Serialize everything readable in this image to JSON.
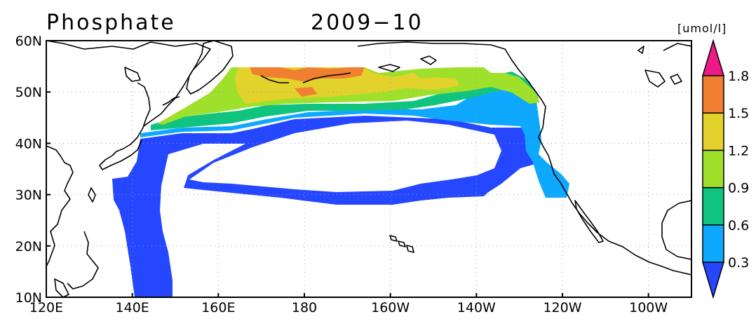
{
  "map": {
    "title": "Phosphate",
    "period": "2009−10",
    "units": "[umol/l]",
    "lat_labels": [
      "60N",
      "50N",
      "40N",
      "30N",
      "20N",
      "10N"
    ],
    "lon_labels": [
      "120E",
      "140E",
      "160E",
      "180",
      "160W",
      "140W",
      "120W",
      "100W"
    ],
    "extent": {
      "lon_min": 120,
      "lon_max": 270,
      "lat_min": 10,
      "lat_max": 60
    },
    "grid": "dotted",
    "colorbar": {
      "ticks": [
        "0.3",
        "0.6",
        "0.9",
        "1.2",
        "1.5",
        "1.8"
      ],
      "colors": [
        "#2547ff",
        "#0ea8ff",
        "#10c480",
        "#9ee02a",
        "#e4d22c",
        "#f08030",
        "#ee1a88"
      ],
      "extend": "both"
    }
  }
}
